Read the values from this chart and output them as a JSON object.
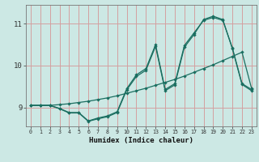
{
  "xlabel": "Humidex (Indice chaleur)",
  "bg_color": "#cce8e4",
  "grid_color": "#d4a0a0",
  "line_color": "#1a6e60",
  "xlim": [
    -0.5,
    23.5
  ],
  "ylim": [
    8.55,
    11.45
  ],
  "yticks": [
    9,
    10,
    11
  ],
  "xticks": [
    0,
    1,
    2,
    3,
    4,
    5,
    6,
    7,
    8,
    9,
    10,
    11,
    12,
    13,
    14,
    15,
    16,
    17,
    18,
    19,
    20,
    21,
    22,
    23
  ],
  "line1_x": [
    0,
    1,
    2,
    3,
    4,
    5,
    6,
    7,
    8,
    9,
    10,
    11,
    12,
    13,
    14,
    15,
    16,
    17,
    18,
    19,
    20,
    21,
    22,
    23
  ],
  "line1_y": [
    9.05,
    9.05,
    9.05,
    9.07,
    9.09,
    9.12,
    9.15,
    9.19,
    9.23,
    9.28,
    9.34,
    9.4,
    9.46,
    9.53,
    9.6,
    9.67,
    9.75,
    9.84,
    9.93,
    10.02,
    10.12,
    10.22,
    10.32,
    9.45
  ],
  "line2_x": [
    0,
    1,
    2,
    3,
    4,
    5,
    6,
    7,
    8,
    9,
    10,
    11,
    12,
    13,
    14,
    15,
    16,
    17,
    18,
    19,
    20,
    21,
    22,
    23
  ],
  "line2_y": [
    9.05,
    9.05,
    9.05,
    8.98,
    8.88,
    8.88,
    8.68,
    8.75,
    8.8,
    8.9,
    9.45,
    9.78,
    9.93,
    10.5,
    9.43,
    9.57,
    10.48,
    10.78,
    11.08,
    11.15,
    11.08,
    10.42,
    9.57,
    9.43
  ],
  "line3_x": [
    0,
    1,
    2,
    3,
    4,
    5,
    6,
    7,
    8,
    9,
    10,
    11,
    12,
    13,
    14,
    15,
    16,
    17,
    18,
    19,
    20,
    21,
    22,
    23
  ],
  "line3_y": [
    9.05,
    9.05,
    9.05,
    8.97,
    8.87,
    8.87,
    8.67,
    8.73,
    8.78,
    8.88,
    9.42,
    9.74,
    9.89,
    10.46,
    9.4,
    9.54,
    10.44,
    10.74,
    11.1,
    11.18,
    11.1,
    10.4,
    9.55,
    9.4
  ]
}
